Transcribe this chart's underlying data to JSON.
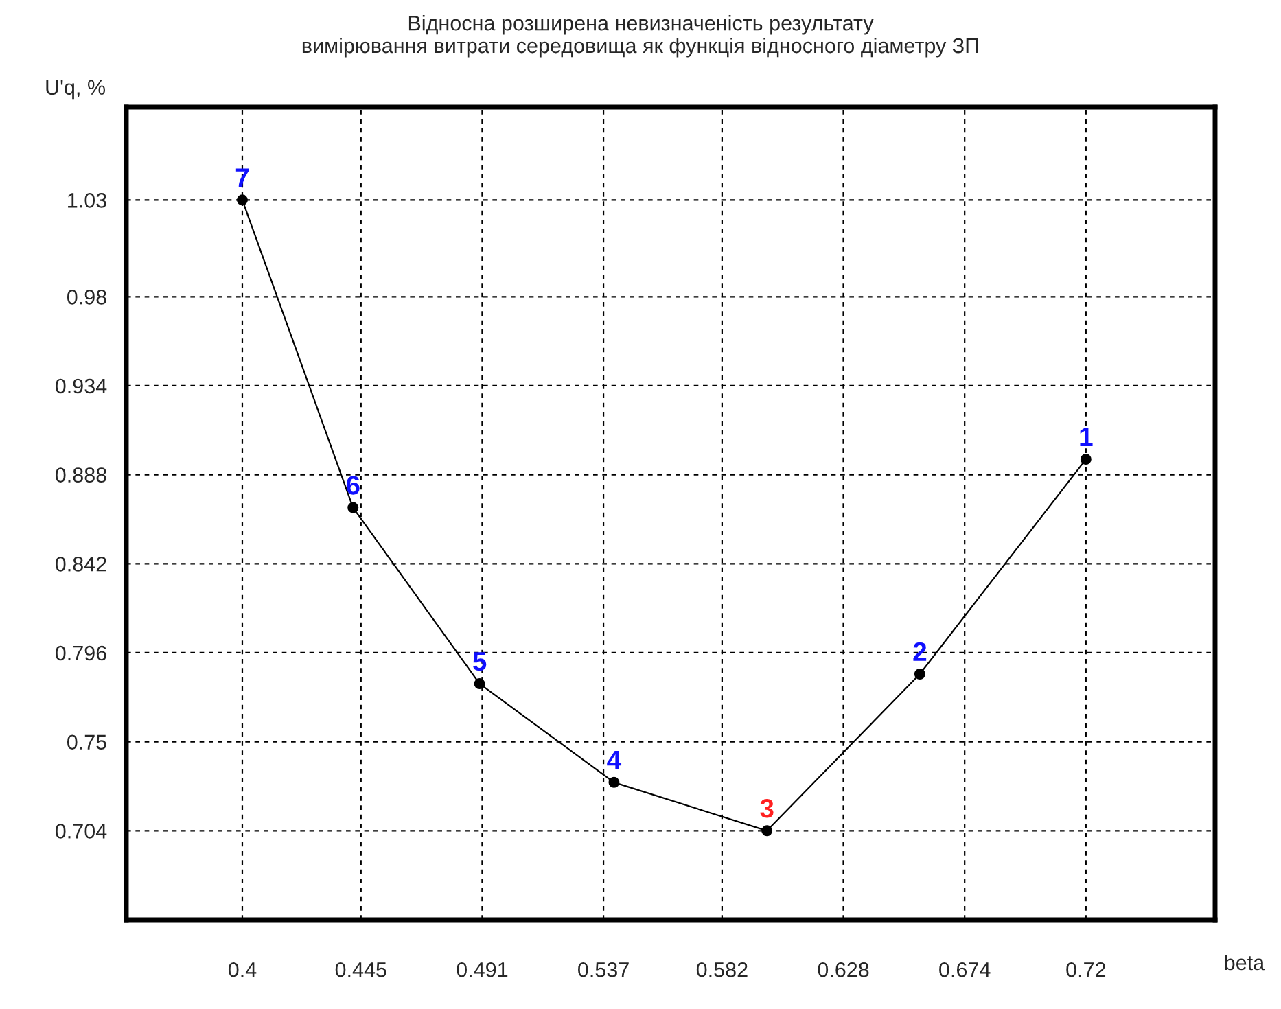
{
  "chart_data": {
    "type": "line",
    "title": "Відносна розширена невизначеність результату\nвимірювання витрати середовища як функція відносного діаметру ЗП",
    "xlabel": "beta",
    "ylabel": "U'q, %",
    "series": [
      {
        "color": "#000000",
        "x": [
          0.4,
          0.442,
          0.49,
          0.541,
          0.599,
          0.657,
          0.72
        ],
        "values": [
          1.03,
          0.871,
          0.78,
          0.729,
          0.704,
          0.785,
          0.896
        ]
      }
    ],
    "annotations": [
      {
        "text": "7",
        "x": 0.4,
        "y": 1.03
      },
      {
        "text": "6",
        "x": 0.442,
        "y": 0.871
      },
      {
        "text": "5",
        "x": 0.49,
        "y": 0.78
      },
      {
        "text": "4",
        "x": 0.541,
        "y": 0.729
      },
      {
        "text": "3",
        "x": 0.599,
        "y": 0.704
      },
      {
        "text": "2",
        "x": 0.657,
        "y": 0.785
      },
      {
        "text": "1",
        "x": 0.72,
        "y": 0.896
      }
    ],
    "xlim": [
      0.356,
      0.769
    ],
    "ylim": [
      0.658,
      1.078
    ],
    "xticks": [
      0.4,
      0.445,
      0.491,
      0.537,
      0.582,
      0.628,
      0.674,
      0.72
    ],
    "yticks": [
      0.704,
      0.75,
      0.796,
      0.842,
      0.888,
      0.934,
      0.98,
      1.03
    ],
    "grid": true,
    "marker": "circle",
    "line_style": "solid"
  }
}
